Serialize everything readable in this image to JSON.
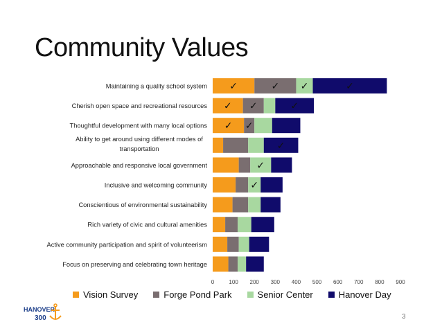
{
  "slide": {
    "title": "Community Values",
    "page_number": "3"
  },
  "logo": {
    "text": "HANOVER",
    "subtext": "300"
  },
  "chart_data": {
    "type": "bar",
    "orientation": "horizontal",
    "stacked": true,
    "categories": [
      "Maintaining a quality school system",
      "Cherish open space and recreational resources",
      "Thoughtful development with many local options",
      "Ability to get around using different modes of transportation",
      "Approachable and responsive local government",
      "Inclusive and welcoming community",
      "Conscientious of environmental sustainability",
      "Rich variety of civic and cultural amenities",
      "Active community participation and spirit of volunteerism",
      "Focus on preserving and celebrating town heritage"
    ],
    "category_lines": [
      [
        "Maintaining a quality school system"
      ],
      [
        "Cherish open space and recreational resources"
      ],
      [
        "Thoughtful development with many local options"
      ],
      [
        "Ability to get around using different modes of",
        "transportation"
      ],
      [
        "Approachable and responsive local government"
      ],
      [
        "Inclusive and welcoming community"
      ],
      [
        "Conscientious of environmental sustainability"
      ],
      [
        "Rich variety of civic and cultural amenities"
      ],
      [
        "Active community participation and spirit of volunteerism"
      ],
      [
        "Focus on preserving and celebrating town heritage"
      ]
    ],
    "series": [
      {
        "name": "Vision Survey",
        "color": "#F59B1C",
        "values": [
          200,
          145,
          150,
          50,
          125,
          110,
          95,
          60,
          70,
          75
        ]
      },
      {
        "name": "Forge Pond Park",
        "color": "#7A6E70",
        "values": [
          200,
          100,
          50,
          120,
          55,
          60,
          75,
          60,
          55,
          45
        ]
      },
      {
        "name": "Senior Center",
        "color": "#A8D8A0",
        "values": [
          80,
          55,
          85,
          75,
          100,
          60,
          60,
          65,
          50,
          40
        ]
      },
      {
        "name": "Hanover Day",
        "color": "#100B6B",
        "values": [
          355,
          185,
          135,
          165,
          100,
          105,
          95,
          110,
          95,
          85
        ]
      }
    ],
    "checkmarks": [
      [
        true,
        true,
        true,
        true
      ],
      [
        true,
        true,
        false,
        true
      ],
      [
        true,
        true,
        false,
        false
      ],
      [
        false,
        false,
        false,
        true
      ],
      [
        false,
        false,
        true,
        false
      ],
      [
        false,
        false,
        true,
        false
      ],
      [
        false,
        false,
        false,
        false
      ],
      [
        false,
        false,
        false,
        false
      ],
      [
        false,
        false,
        false,
        false
      ],
      [
        false,
        false,
        false,
        false
      ]
    ],
    "check_symbol": "✓",
    "xlim": [
      0,
      900
    ],
    "xticks": [
      0,
      100,
      200,
      300,
      400,
      500,
      600,
      700,
      800,
      900
    ],
    "legend_position": "bottom",
    "grid": false
  }
}
